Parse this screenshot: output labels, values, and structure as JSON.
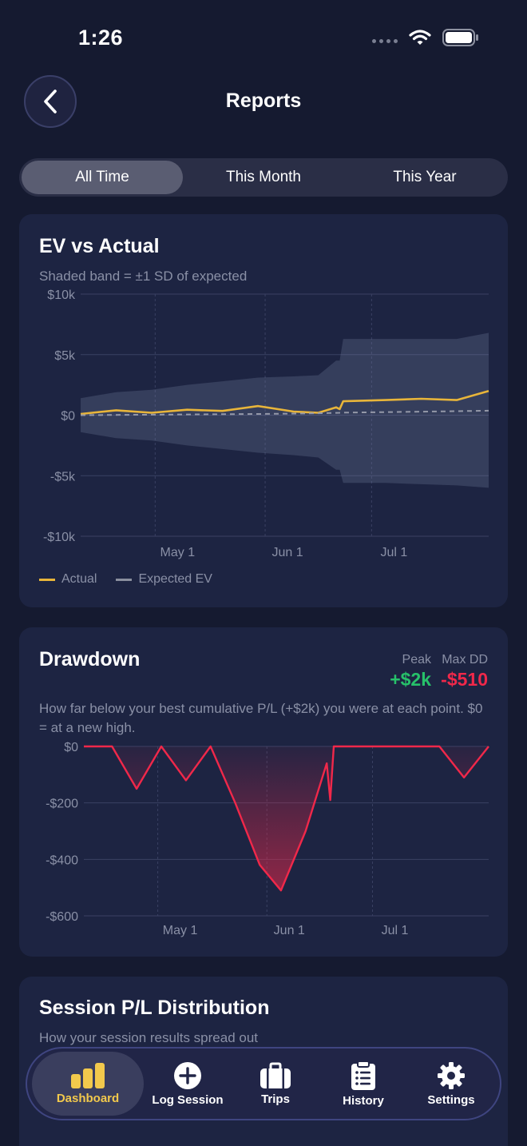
{
  "status": {
    "time": "1:26"
  },
  "header": {
    "title": "Reports"
  },
  "segments": [
    {
      "label": "All Time",
      "active": true
    },
    {
      "label": "This Month",
      "active": false
    },
    {
      "label": "This Year",
      "active": false
    }
  ],
  "ev_card": {
    "title": "EV vs Actual",
    "subtitle": "Shaded band = ±1 SD of expected",
    "legend": [
      {
        "label": "Actual",
        "color": "#e8b53a"
      },
      {
        "label": "Expected EV",
        "color": "#8a8f9e"
      }
    ]
  },
  "drawdown_card": {
    "title": "Drawdown",
    "peak_label": "Peak",
    "peak_value": "+$2k",
    "maxdd_label": "Max DD",
    "maxdd_value": "-$510",
    "subtitle": "How far below your best cumulative P/L (+$2k) you were at each point. $0 = at a new high."
  },
  "distribution_card": {
    "title": "Session P/L Distribution",
    "subtitle": "How your session results spread out"
  },
  "tabbar": [
    {
      "label": "Dashboard",
      "icon": "bar-chart-icon",
      "active": true
    },
    {
      "label": "Log Session",
      "icon": "plus-circle-icon",
      "active": false
    },
    {
      "label": "Trips",
      "icon": "briefcase-icon",
      "active": false
    },
    {
      "label": "History",
      "icon": "clipboard-list-icon",
      "active": false
    },
    {
      "label": "Settings",
      "icon": "gear-icon",
      "active": false
    }
  ],
  "colors": {
    "accent": "#e8b53a",
    "positive": "#27c16a",
    "negative": "#f0284a",
    "background": "#151a30",
    "card": "#1d2442"
  },
  "chart_data": [
    {
      "type": "line",
      "title": "EV vs Actual",
      "x_ticks": [
        "May 1",
        "Jun 1",
        "Jul 1"
      ],
      "y_ticks": [
        "$10k",
        "$5k",
        "$0",
        "-$5k",
        "-$10k"
      ],
      "ylim": [
        -10000,
        10000
      ],
      "x": [
        "2024-04-10",
        "2024-04-20",
        "2024-04-30",
        "2024-05-10",
        "2024-05-20",
        "2024-05-30",
        "2024-06-09",
        "2024-06-16",
        "2024-06-21",
        "2024-06-22",
        "2024-06-23",
        "2024-07-05",
        "2024-07-15",
        "2024-07-25",
        "2024-08-03"
      ],
      "series": [
        {
          "name": "Actual",
          "values": [
            100,
            400,
            200,
            450,
            350,
            750,
            300,
            200,
            650,
            500,
            1150,
            1250,
            1350,
            1250,
            2000
          ]
        },
        {
          "name": "Expected EV",
          "values": [
            0,
            20,
            40,
            60,
            80,
            100,
            130,
            160,
            190,
            200,
            210,
            250,
            290,
            330,
            370
          ]
        }
      ],
      "band_upper": [
        1400,
        1900,
        2100,
        2500,
        2800,
        3100,
        3200,
        3300,
        4500,
        4500,
        6300,
        6300,
        6300,
        6300,
        6800
      ],
      "band_lower": [
        -1400,
        -1900,
        -2100,
        -2500,
        -2800,
        -3100,
        -3300,
        -3500,
        -4500,
        -4500,
        -5600,
        -5600,
        -5700,
        -5800,
        -6000
      ],
      "legend": "bottom-left"
    },
    {
      "type": "area",
      "title": "Drawdown",
      "x_ticks": [
        "May 1",
        "Jun 1",
        "Jul 1"
      ],
      "y_ticks": [
        "$0",
        "-$200",
        "-$400",
        "-$600"
      ],
      "ylim": [
        -600,
        0
      ],
      "x": [
        "2024-04-10",
        "2024-04-18",
        "2024-04-25",
        "2024-05-02",
        "2024-05-09",
        "2024-05-16",
        "2024-05-23",
        "2024-05-30",
        "2024-06-05",
        "2024-06-12",
        "2024-06-18",
        "2024-06-19",
        "2024-06-20",
        "2024-06-30",
        "2024-07-10",
        "2024-07-20",
        "2024-07-27",
        "2024-08-03"
      ],
      "values": [
        0,
        0,
        -150,
        0,
        -120,
        0,
        -200,
        -420,
        -510,
        -300,
        -60,
        -190,
        0,
        0,
        0,
        0,
        -110,
        0
      ]
    }
  ]
}
